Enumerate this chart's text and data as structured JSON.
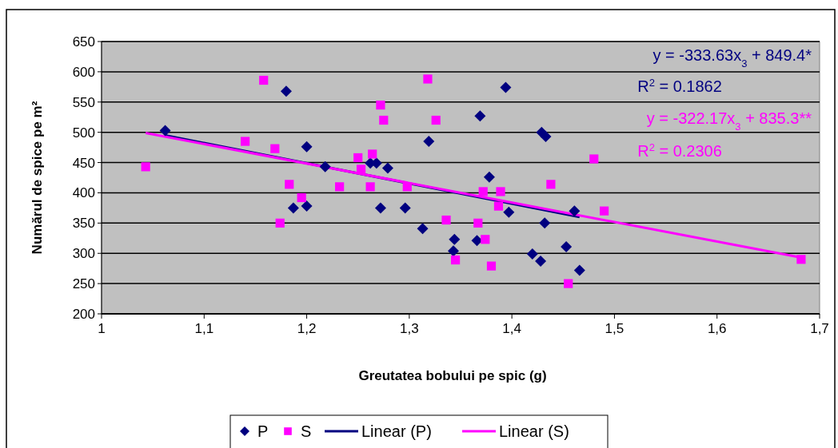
{
  "chart_data": {
    "type": "scatter",
    "xlabel": "Greutatea bobului pe spic (g)",
    "ylabel": "Numărul de spice pe m²",
    "xlim": [
      1,
      1.7
    ],
    "xticks": [
      1,
      {
        "value": 1.1,
        "label": "1,1"
      },
      {
        "value": 1.2,
        "label": "1,2"
      },
      {
        "value": 1.3,
        "label": "1,3"
      },
      {
        "value": 1.4,
        "label": "1,4"
      },
      {
        "value": 1.5,
        "label": "1,5"
      },
      {
        "value": 1.6,
        "label": "1,6"
      },
      {
        "value": 1.7,
        "label": "1,7"
      }
    ],
    "ylim": [
      200,
      650
    ],
    "yticks": [
      200,
      250,
      300,
      350,
      400,
      450,
      500,
      550,
      600,
      650
    ],
    "grid": "y",
    "legend": "bottom",
    "series": [
      {
        "name": "P",
        "marker": "diamond",
        "color": "#000080",
        "x": [
          1.062,
          1.18,
          1.187,
          1.2,
          1.2,
          1.218,
          1.262,
          1.268,
          1.272,
          1.279,
          1.296,
          1.313,
          1.319,
          1.343,
          1.344,
          1.366,
          1.369,
          1.378,
          1.394,
          1.397,
          1.42,
          1.428,
          1.429,
          1.433,
          1.432,
          1.453,
          1.461,
          1.466
        ],
        "values": [
          503,
          568,
          375,
          476,
          378,
          443,
          449,
          449,
          375,
          441,
          375,
          341,
          485,
          304,
          323,
          321,
          527,
          426,
          574,
          368,
          299,
          287,
          500,
          493,
          350,
          311,
          370,
          272
        ]
      },
      {
        "name": "S",
        "marker": "square",
        "color": "#ff00ff",
        "x": [
          1.043,
          1.14,
          1.158,
          1.169,
          1.174,
          1.183,
          1.195,
          1.232,
          1.25,
          1.253,
          1.262,
          1.264,
          1.272,
          1.275,
          1.298,
          1.318,
          1.326,
          1.336,
          1.345,
          1.367,
          1.372,
          1.374,
          1.38,
          1.387,
          1.389,
          1.438,
          1.455,
          1.48,
          1.49,
          1.682
        ],
        "values": [
          443,
          485,
          586,
          473,
          350,
          414,
          392,
          410,
          458,
          439,
          410,
          464,
          545,
          520,
          410,
          588,
          520,
          355,
          289,
          350,
          402,
          323,
          279,
          378,
          402,
          414,
          250,
          456,
          370,
          290
        ]
      },
      {
        "name": "Linear (P)",
        "type": "line",
        "color": "#000080",
        "x": [
          1.062,
          1.466
        ],
        "values": [
          495,
          360
        ]
      },
      {
        "name": "Linear (S)",
        "type": "line",
        "color": "#ff00ff",
        "x": [
          1.043,
          1.682
        ],
        "values": [
          499,
          293
        ]
      }
    ],
    "annotations": [
      "y = -333.63x$_{3}$ + 849.4*",
      "R$^{2}$ = 0.1862",
      "y = -322.17x$_{3}$ + 835.3**",
      "R$^{2}$ = 0.2306"
    ]
  }
}
